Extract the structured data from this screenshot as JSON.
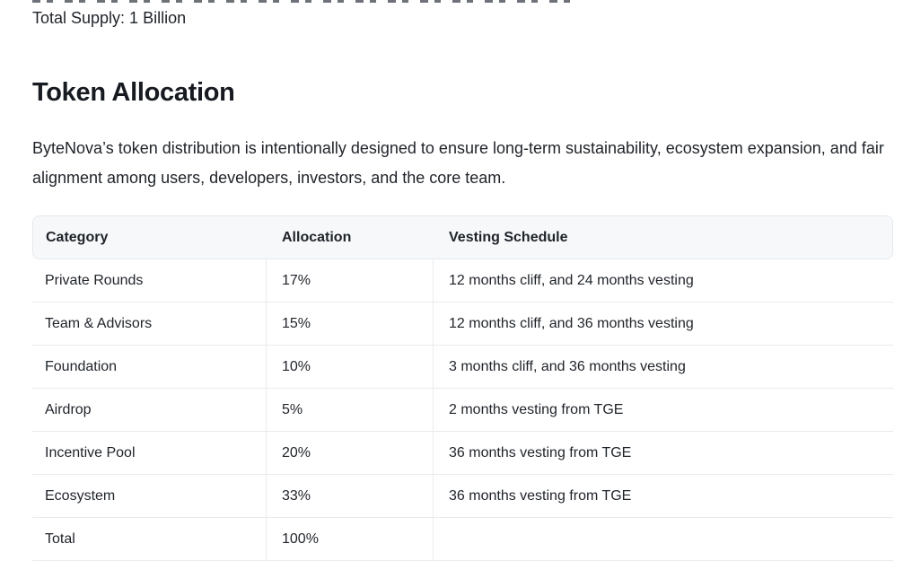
{
  "page": {
    "supply_line": "Total Supply: 1 Billion",
    "heading": "Token Allocation",
    "intro": "ByteNova’s token distribution is intentionally designed to ensure long-term sustainability, ecosystem expansion, and fair alignment among users, developers, investors, and the core team."
  },
  "table": {
    "columns": [
      "Category",
      "Allocation",
      "Vesting Schedule"
    ],
    "rows": [
      {
        "category": "Private Rounds",
        "allocation": "17%",
        "vesting": "12 months cliff, and 24 months vesting"
      },
      {
        "category": "Team & Advisors",
        "allocation": "15%",
        "vesting": "12 months cliff, and 36 months vesting"
      },
      {
        "category": "Foundation",
        "allocation": "10%",
        "vesting": "3 months cliff, and 36 months vesting"
      },
      {
        "category": "Airdrop",
        "allocation": "5%",
        "vesting": "2 months vesting from TGE"
      },
      {
        "category": "Incentive Pool",
        "allocation": "20%",
        "vesting": "36 months vesting from TGE"
      },
      {
        "category": "Ecosystem",
        "allocation": "33%",
        "vesting": "36 months vesting from TGE"
      },
      {
        "category": "Total",
        "allocation": "100%",
        "vesting": ""
      }
    ]
  },
  "colors": {
    "header_bg": "#f6f8fa",
    "border": "#e9ebee",
    "text": "#1f2329"
  }
}
